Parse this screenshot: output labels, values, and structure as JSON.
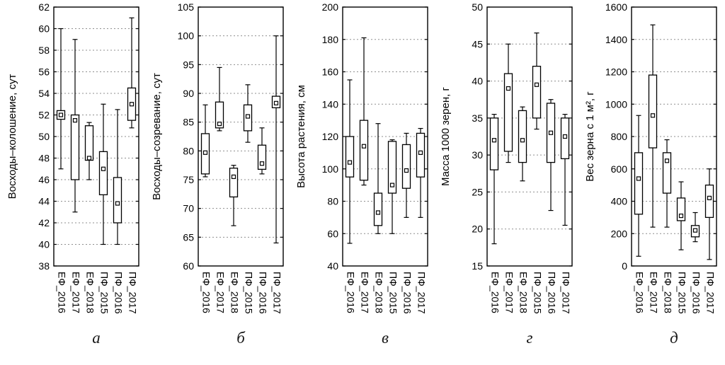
{
  "figure": {
    "background": "#ffffff",
    "axis_color": "#000000",
    "grid_color": "#8f8f8f"
  },
  "chart_data": [
    {
      "type": "box",
      "letter": "а",
      "ylabel": "Восходы–колошение, сут",
      "ylim": [
        38,
        62
      ],
      "yticks": [
        38,
        40,
        42,
        44,
        46,
        48,
        50,
        52,
        54,
        56,
        58,
        60,
        62
      ],
      "grid": "dashed-horizontal",
      "categories": [
        "ЕФ_2016",
        "ЕФ_2017",
        "ЕФ_2018",
        "ПФ_2015",
        "ПФ_2016",
        "ПФ_2017"
      ],
      "boxes": [
        {
          "whisker_low": 47,
          "q1": 51.6,
          "mean": 52,
          "q3": 52.4,
          "whisker_high": 60
        },
        {
          "whisker_low": 43,
          "q1": 46,
          "mean": 51.5,
          "q3": 52,
          "whisker_high": 59
        },
        {
          "whisker_low": 46,
          "q1": 47.8,
          "mean": 48,
          "q3": 51,
          "whisker_high": 51.3
        },
        {
          "whisker_low": 40,
          "q1": 44.6,
          "mean": 47,
          "q3": 48.6,
          "whisker_high": 53
        },
        {
          "whisker_low": 40,
          "q1": 42,
          "mean": 43.8,
          "q3": 46.2,
          "whisker_high": 52.5
        },
        {
          "whisker_low": 50.8,
          "q1": 51.5,
          "mean": 53,
          "q3": 54.5,
          "whisker_high": 61
        }
      ]
    },
    {
      "type": "box",
      "letter": "б",
      "ylabel": "Восходы–созревание, сут",
      "ylim": [
        60,
        105
      ],
      "yticks": [
        60,
        65,
        70,
        75,
        80,
        85,
        90,
        95,
        100,
        105
      ],
      "grid": "dashed-horizontal",
      "categories": [
        "ЕФ_2016",
        "ЕФ_2017",
        "ЕФ_2018",
        "ПФ_2015",
        "ПФ_2016",
        "ПФ_2017"
      ],
      "boxes": [
        {
          "whisker_low": 75.5,
          "q1": 76,
          "mean": 79.7,
          "q3": 83,
          "whisker_high": 88
        },
        {
          "whisker_low": 83.5,
          "q1": 84,
          "mean": 84.7,
          "q3": 88.5,
          "whisker_high": 94.5
        },
        {
          "whisker_low": 67,
          "q1": 72,
          "mean": 75.5,
          "q3": 77,
          "whisker_high": 77.5
        },
        {
          "whisker_low": 81.5,
          "q1": 83.5,
          "mean": 86,
          "q3": 88,
          "whisker_high": 91.5
        },
        {
          "whisker_low": 76,
          "q1": 76.8,
          "mean": 77.8,
          "q3": 81,
          "whisker_high": 84
        },
        {
          "whisker_low": 64,
          "q1": 87.5,
          "mean": 88.3,
          "q3": 89.5,
          "whisker_high": 100
        }
      ]
    },
    {
      "type": "box",
      "letter": "в",
      "ylabel": "Высота растения, см",
      "ylim": [
        40,
        200
      ],
      "yticks": [
        40,
        60,
        80,
        100,
        120,
        140,
        160,
        180,
        200
      ],
      "grid": "dashed-horizontal",
      "categories": [
        "ЕФ_2016",
        "ЕФ_2017",
        "ЕФ_2018",
        "ПФ_2015",
        "ПФ_2016",
        "ПФ_2017"
      ],
      "boxes": [
        {
          "whisker_low": 54,
          "q1": 95,
          "mean": 104,
          "q3": 120,
          "whisker_high": 155
        },
        {
          "whisker_low": 90,
          "q1": 93,
          "mean": 114,
          "q3": 130,
          "whisker_high": 181
        },
        {
          "whisker_low": 60,
          "q1": 65,
          "mean": 73,
          "q3": 85,
          "whisker_high": 128
        },
        {
          "whisker_low": 60,
          "q1": 85,
          "mean": 90,
          "q3": 117,
          "whisker_high": 118
        },
        {
          "whisker_low": 70,
          "q1": 88,
          "mean": 99,
          "q3": 115,
          "whisker_high": 122
        },
        {
          "whisker_low": 70,
          "q1": 95,
          "mean": 110,
          "q3": 122,
          "whisker_high": 125
        }
      ]
    },
    {
      "type": "box",
      "letter": "г",
      "ylabel": "Масса 1000 зерен, г",
      "ylim": [
        15,
        50
      ],
      "yticks": [
        15,
        20,
        25,
        30,
        35,
        40,
        45,
        50
      ],
      "grid": "dashed-horizontal",
      "categories": [
        "ЕФ_2016",
        "ЕФ_2017",
        "ЕФ_2018",
        "ПФ_2015",
        "ПФ_2016",
        "ПФ_2017"
      ],
      "boxes": [
        {
          "whisker_low": 18,
          "q1": 28,
          "mean": 32,
          "q3": 35,
          "whisker_high": 35.5
        },
        {
          "whisker_low": 29,
          "q1": 30.5,
          "mean": 39,
          "q3": 41,
          "whisker_high": 45
        },
        {
          "whisker_low": 26.5,
          "q1": 29,
          "mean": 32,
          "q3": 36,
          "whisker_high": 36.5
        },
        {
          "whisker_low": 33.5,
          "q1": 35,
          "mean": 39.5,
          "q3": 42,
          "whisker_high": 46.5
        },
        {
          "whisker_low": 22.5,
          "q1": 29,
          "mean": 33,
          "q3": 37,
          "whisker_high": 37.5
        },
        {
          "whisker_low": 20.5,
          "q1": 29.5,
          "mean": 32.5,
          "q3": 35,
          "whisker_high": 35.5
        }
      ]
    },
    {
      "type": "box",
      "letter": "д",
      "ylabel": "Вес зерна с 1 м², г",
      "ylim": [
        0,
        1600
      ],
      "yticks": [
        0,
        200,
        400,
        600,
        800,
        1000,
        1200,
        1400,
        1600
      ],
      "grid": "dashed-horizontal",
      "categories": [
        "ЕФ_2016",
        "ЕФ_2017",
        "ЕФ_2018",
        "ПФ_2015",
        "ПФ_2016",
        "ПФ_2017"
      ],
      "boxes": [
        {
          "whisker_low": 60,
          "q1": 320,
          "mean": 540,
          "q3": 700,
          "whisker_high": 930
        },
        {
          "whisker_low": 240,
          "q1": 730,
          "mean": 930,
          "q3": 1180,
          "whisker_high": 1490
        },
        {
          "whisker_low": 240,
          "q1": 450,
          "mean": 650,
          "q3": 700,
          "whisker_high": 780
        },
        {
          "whisker_low": 100,
          "q1": 280,
          "mean": 310,
          "q3": 420,
          "whisker_high": 520
        },
        {
          "whisker_low": 150,
          "q1": 180,
          "mean": 220,
          "q3": 250,
          "whisker_high": 330
        },
        {
          "whisker_low": 40,
          "q1": 300,
          "mean": 420,
          "q3": 500,
          "whisker_high": 600
        }
      ]
    }
  ]
}
